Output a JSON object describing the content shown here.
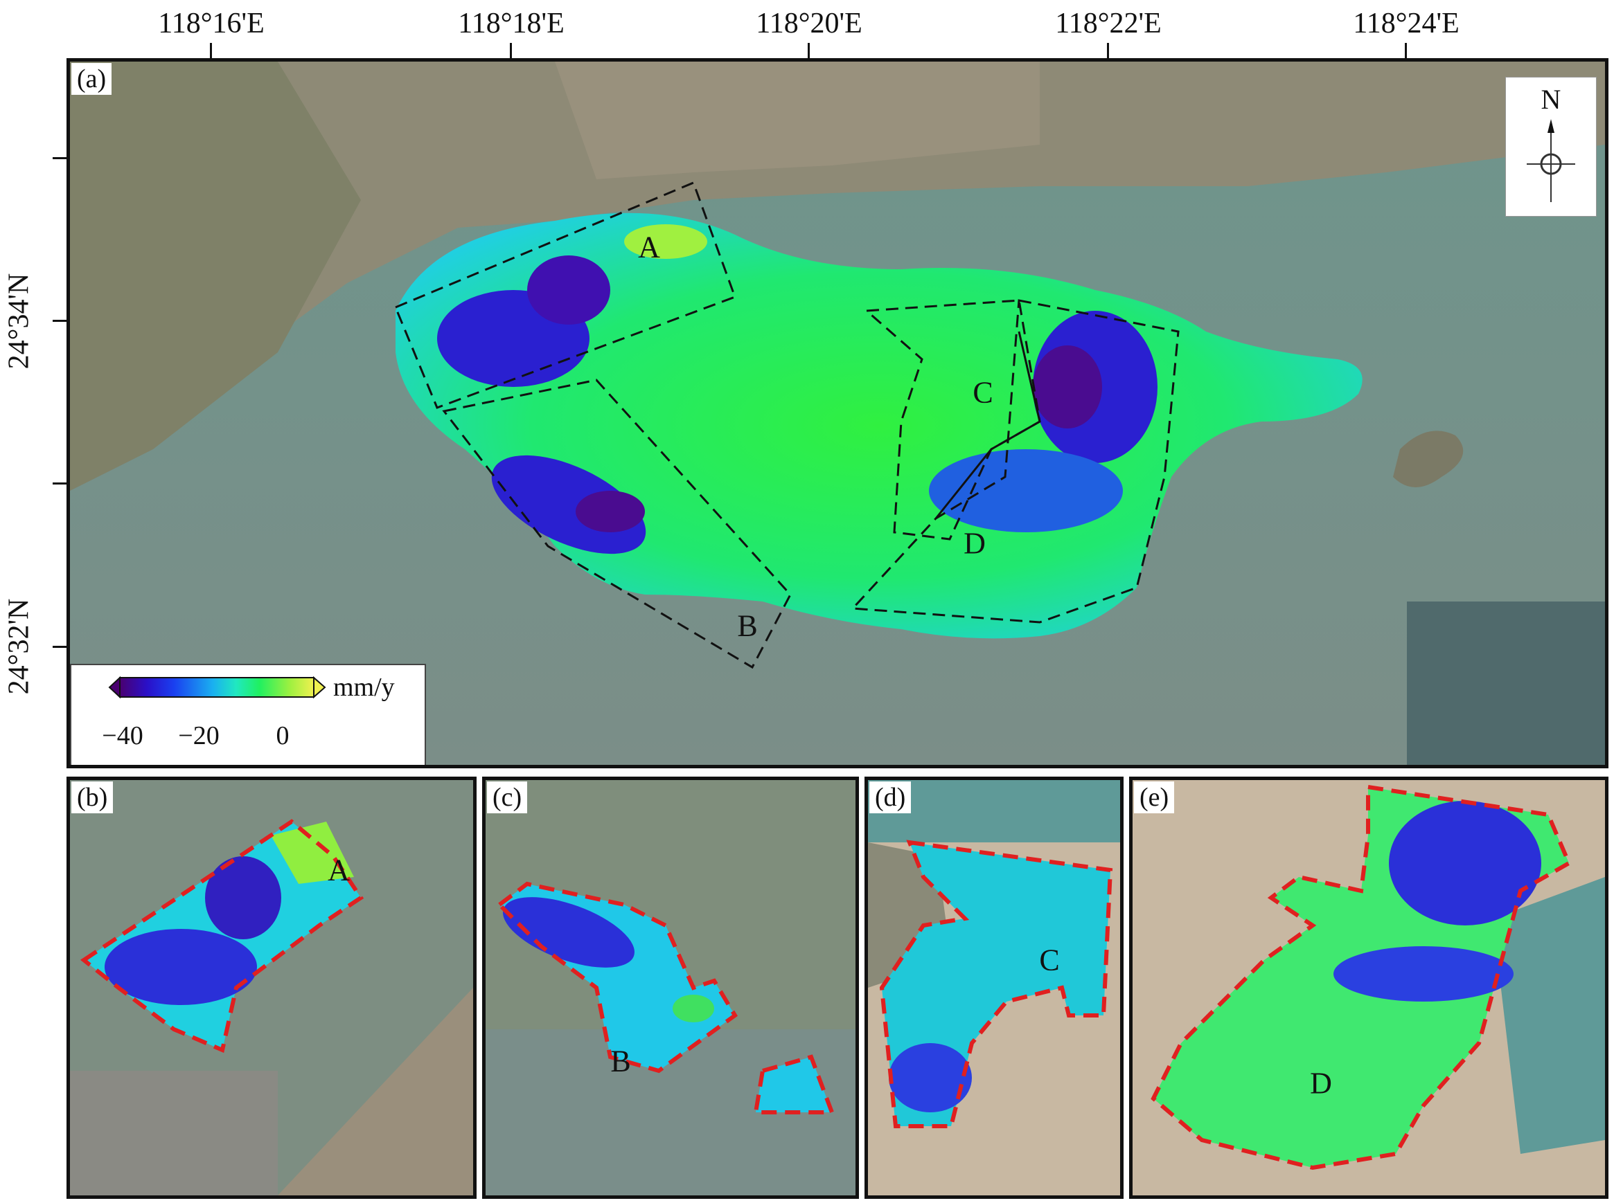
{
  "top_longitudes": [
    "118°16'E",
    "118°18'E",
    "118°20'E",
    "118°22'E",
    "118°24'E"
  ],
  "left_latitudes": [
    "24°34'N",
    "24°32'N"
  ],
  "panels": {
    "a": {
      "label": "(a)",
      "zones": [
        "A",
        "B",
        "C",
        "D"
      ]
    },
    "b": {
      "label": "(b)",
      "zone": "A"
    },
    "c": {
      "label": "(c)",
      "zone": "B"
    },
    "d": {
      "label": "(d)",
      "zone": "C"
    },
    "e": {
      "label": "(e)",
      "zone": "D"
    }
  },
  "north_arrow": {
    "letter": "N"
  },
  "colorbar": {
    "unit": "mm/y",
    "ticks": [
      "−40",
      "−20",
      "0"
    ],
    "range": [
      -45,
      10
    ],
    "colors": [
      "#4a0070",
      "#2a10c8",
      "#1a40f0",
      "#1ab0f0",
      "#20e8c0",
      "#20f060",
      "#a0f040",
      "#f0f050"
    ]
  },
  "colors": {
    "background_satellite": "#6f8c86",
    "sea": "#5f9a98",
    "land": "#8c8878",
    "zone_outline_dashed": "#111111",
    "subpanel_outline_dashed": "#e02020"
  }
}
